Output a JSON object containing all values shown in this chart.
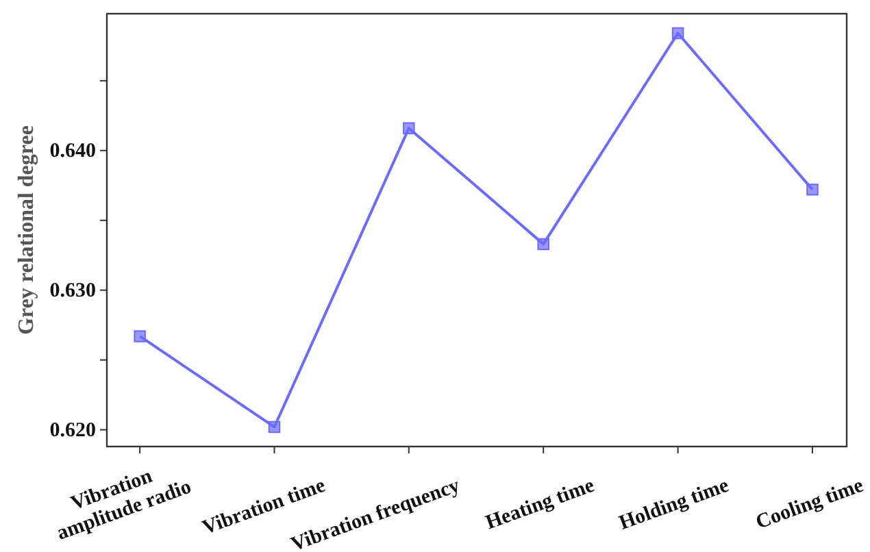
{
  "chart_data": {
    "type": "line",
    "ylabel": "Grey relational degree",
    "categories": [
      "Vibration\namplitude radio",
      "Vibration time",
      "Vibration frequency",
      "Heating time",
      "Holding time",
      "Cooling time"
    ],
    "series": [
      {
        "color": "#6b6bff",
        "values": [
          0.6267,
          0.6202,
          0.6416,
          0.6333,
          0.6484,
          0.6372
        ]
      }
    ],
    "ylim": [
      0.6188,
      0.6498
    ],
    "yticks": [
      {
        "value": 0.62,
        "label": "0.620"
      },
      {
        "value": 0.625,
        "label": null
      },
      {
        "value": 0.63,
        "label": "0.630"
      },
      {
        "value": 0.635,
        "label": null
      },
      {
        "value": 0.64,
        "label": "0.640"
      },
      {
        "value": 0.645,
        "label": null
      }
    ],
    "marker": "square",
    "line_style": "solid"
  }
}
